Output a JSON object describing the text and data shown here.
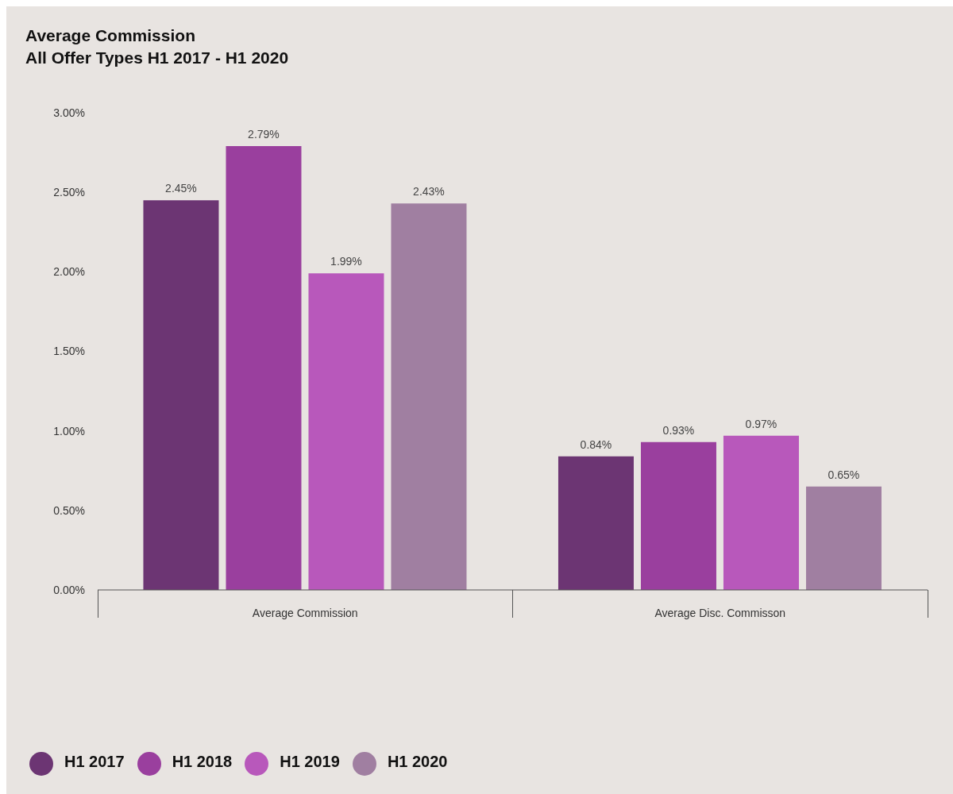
{
  "chart_data": {
    "type": "bar",
    "title": "Average Commission",
    "subtitle": "All Offer Types H1 2017 - H1 2020",
    "categories": [
      "Average Commission",
      "Average Disc. Commisson"
    ],
    "series": [
      {
        "name": "H1 2017",
        "color": "#6c3573",
        "values": [
          2.45,
          0.84
        ],
        "value_labels": [
          "2.45%",
          "0.84%"
        ]
      },
      {
        "name": "H1 2018",
        "color": "#9a3f9e",
        "values": [
          2.79,
          0.93
        ],
        "value_labels": [
          "2.79%",
          "0.93%"
        ]
      },
      {
        "name": "H1 2019",
        "color": "#b858bb",
        "values": [
          1.99,
          0.97
        ],
        "value_labels": [
          "1.99%",
          "0.97%"
        ]
      },
      {
        "name": "H1 2020",
        "color": "#a07fa1",
        "values": [
          2.43,
          0.65
        ],
        "value_labels": [
          "2.43%",
          "0.65%"
        ]
      }
    ],
    "ylim": [
      0,
      3
    ],
    "yticks": [
      {
        "value": 0,
        "label": "0.00%"
      },
      {
        "value": 0.5,
        "label": "0.50%"
      },
      {
        "value": 1,
        "label": "1.00%"
      },
      {
        "value": 1.5,
        "label": "1.50%"
      },
      {
        "value": 2,
        "label": "2.00%"
      },
      {
        "value": 2.5,
        "label": "2.50%"
      },
      {
        "value": 3,
        "label": "3.00%"
      }
    ],
    "grid": false,
    "legend": "bottom left"
  }
}
